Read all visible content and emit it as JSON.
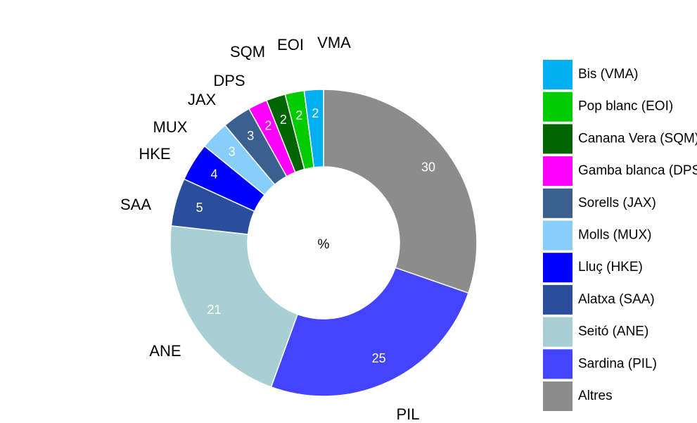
{
  "chart_data": {
    "type": "donut",
    "center_label": "%",
    "categories": [
      "Altres",
      "Sardina (PIL)",
      "Seitó (ANE)",
      "Alatxa (SAA)",
      "Lluç (HKE)",
      "Molls (MUX)",
      "Sorells (JAX)",
      "Gamba blanca (DPS)",
      "Canana Vera (SQM)",
      "Pop blanc (EOI)",
      "Bis (VMA)"
    ],
    "labels": [
      null,
      "PIL",
      "ANE",
      "SAA",
      "HKE",
      "MUX",
      "JAX",
      "DPS",
      "SQM",
      "EOI",
      "VMA"
    ],
    "values": [
      30,
      25,
      21,
      5,
      4,
      3,
      3,
      2,
      2,
      2,
      2
    ],
    "colors": [
      "#8c8c8c",
      "#4444ff",
      "#a8cfd3",
      "#2a4d9c",
      "#0000ff",
      "#87cefa",
      "#3a6090",
      "#ff00ff",
      "#006400",
      "#00cc00",
      "#00b0f0"
    ],
    "legend": "right"
  }
}
